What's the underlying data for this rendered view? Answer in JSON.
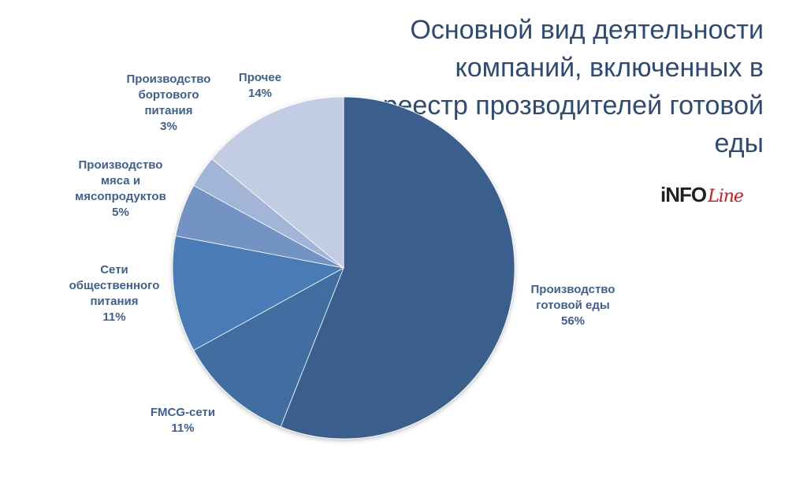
{
  "chart_data": {
    "type": "pie",
    "title": "Основной вид деятельности компаний, включенных в реестр прозводителей готовой еды",
    "start_angle": "top",
    "direction": "clockwise",
    "slices": [
      {
        "label": "Производство готовой еды",
        "value": 56,
        "value_label": "56%",
        "color": "#3a5e8c"
      },
      {
        "label": "FMCG-сети",
        "value": 11,
        "value_label": "11%",
        "color": "#416ea0"
      },
      {
        "label": "Сети общественного питания",
        "value": 11,
        "value_label": "11%",
        "color": "#4a7bb7"
      },
      {
        "label": "Производство мяса и мясопродуктов",
        "value": 5,
        "value_label": "5%",
        "color": "#7393c4"
      },
      {
        "label": "Производство бортового питания",
        "value": 3,
        "value_label": "3%",
        "color": "#a3b5d6"
      },
      {
        "label": "Прочее",
        "value": 14,
        "value_label": "14%",
        "color": "#c2cde3"
      }
    ]
  },
  "logo": {
    "part1": "iNFO",
    "part2": "Line"
  }
}
